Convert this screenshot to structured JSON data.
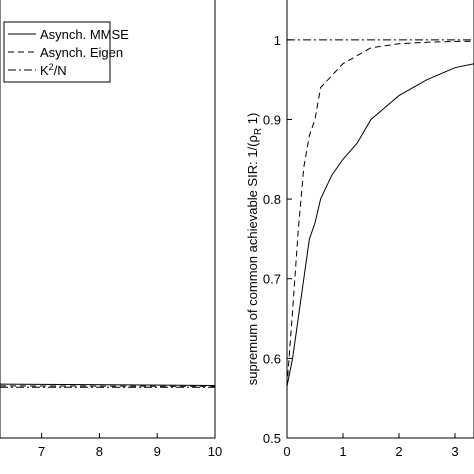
{
  "chart_data": [
    {
      "type": "line",
      "x": [
        6.28,
        10
      ],
      "series": [
        {
          "name": "Asynch. MMSE",
          "color": "#000000",
          "dash": "none",
          "values": [
            0.123,
            0.12
          ]
        },
        {
          "name": "Asynch. Eigen",
          "color": "#000000",
          "dash": "6 4",
          "values": [
            0.119,
            0.118
          ]
        },
        {
          "name": {
            "base": "K",
            "sup": "2",
            "tail": "/N"
          },
          "color": "#000000",
          "dash": "8 3 2 3",
          "values": [
            0.116,
            0.116
          ]
        }
      ],
      "xlim": [
        6.28,
        10
      ],
      "xticks": [
        7,
        8,
        9,
        10
      ],
      "ylim": [
        0,
        1
      ],
      "legend": "upper left"
    },
    {
      "type": "line",
      "x": [
        0,
        0.1,
        0.2,
        0.3,
        0.4,
        0.5,
        0.6,
        0.8,
        1,
        1.25,
        1.5,
        2,
        2.5,
        3,
        3.34
      ],
      "ylabel": {
        "text": "supremum of common achievable SIR: 1/(ρ",
        "sub": "R",
        "tail": " 1)"
      },
      "series": [
        {
          "color": "#000000",
          "dash": "none",
          "values": [
            0.565,
            0.6,
            0.65,
            0.7,
            0.75,
            0.77,
            0.8,
            0.83,
            0.85,
            0.87,
            0.9,
            0.93,
            0.95,
            0.965,
            0.97
          ]
        },
        {
          "color": "#000000",
          "dash": "6 4",
          "values": [
            0.565,
            0.66,
            0.76,
            0.84,
            0.88,
            0.9,
            0.94,
            0.955,
            0.97,
            0.98,
            0.99,
            0.995,
            0.997,
            0.998,
            0.998
          ]
        },
        {
          "color": "#000000",
          "dash": "8 3 2 3",
          "values": [
            1,
            1,
            1,
            1,
            1,
            1,
            1,
            1,
            1,
            1,
            1,
            1,
            1,
            1,
            1
          ]
        }
      ],
      "xlim": [
        0,
        3.34
      ],
      "xticks": [
        0,
        1,
        2,
        3
      ],
      "ylim": [
        0.5,
        1.05
      ],
      "yticks": [
        0.5,
        0.6,
        0.7,
        0.8,
        0.9,
        1
      ]
    }
  ]
}
